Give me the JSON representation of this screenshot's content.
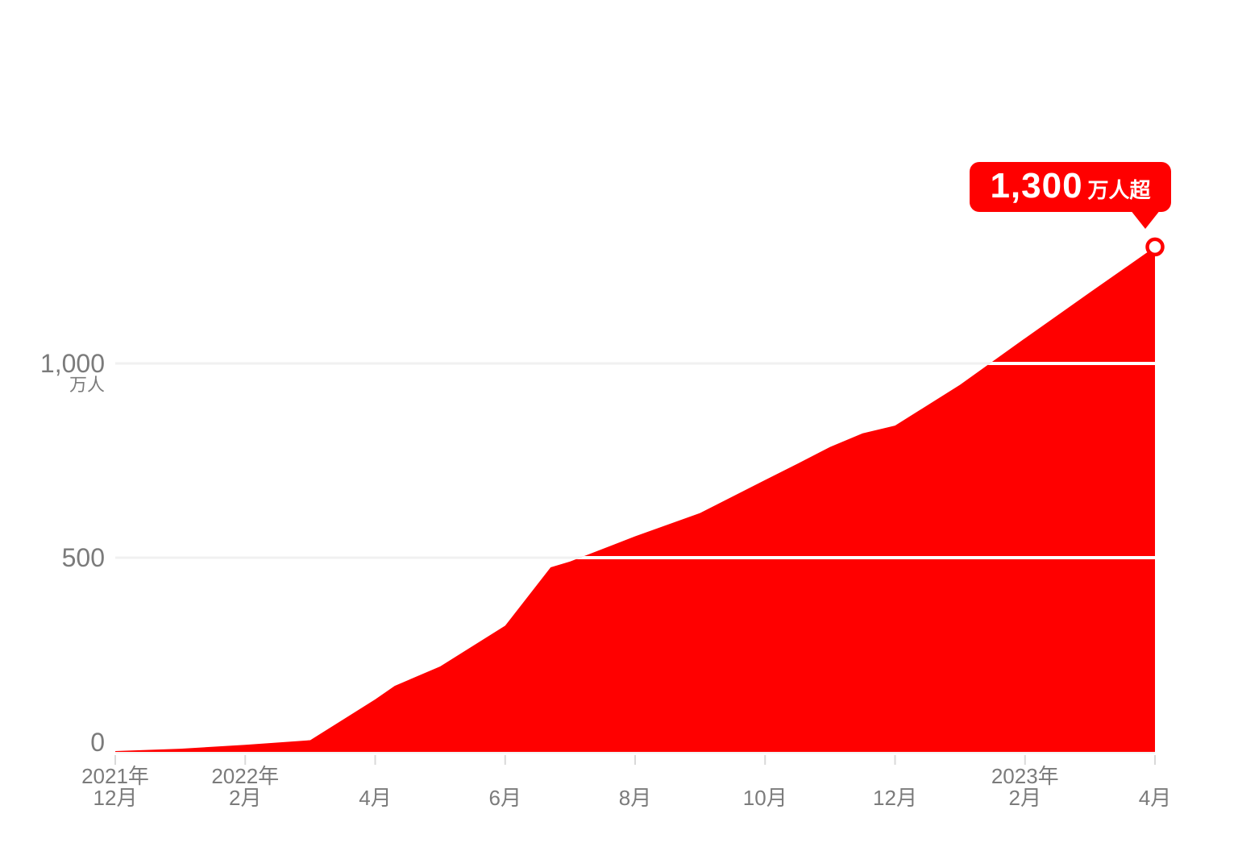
{
  "colors": {
    "accent_red": "#FF0000",
    "label_gray": "#7B7B7B",
    "grid_gray": "#F1F1F1",
    "tick_gray": "#D9D9D9",
    "grid_on_area": "#FFFFFF",
    "background": "#FFFFFF"
  },
  "chart_data": {
    "type": "area",
    "title": "",
    "unit": "万人",
    "x_start": "2021-12",
    "x_end": "2023-04",
    "x_months_span": 16,
    "ylim": [
      0,
      1300
    ],
    "grid": "horizontal",
    "legend": "none",
    "series": [
      {
        "name": "",
        "color": "#FF0000",
        "points": [
          {
            "m": 0,
            "date": "2021-12",
            "v": 2
          },
          {
            "m": 1,
            "date": "2022-01",
            "v": 8
          },
          {
            "m": 2,
            "date": "2022-02",
            "v": 18
          },
          {
            "m": 3,
            "date": "2022-03",
            "v": 30
          },
          {
            "m": 4,
            "date": "2022-04",
            "v": 135
          },
          {
            "m": 4.3,
            "v": 170
          },
          {
            "m": 5,
            "date": "2022-05",
            "v": 220
          },
          {
            "m": 6,
            "date": "2022-06",
            "v": 325
          },
          {
            "m": 6.7,
            "v": 475
          },
          {
            "m": 7,
            "date": "2022-07",
            "v": 490
          },
          {
            "m": 8,
            "date": "2022-08",
            "v": 555
          },
          {
            "m": 9,
            "date": "2022-09",
            "v": 615
          },
          {
            "m": 10,
            "date": "2022-10",
            "v": 700
          },
          {
            "m": 10.5,
            "v": 742
          },
          {
            "m": 11,
            "date": "2022-11",
            "v": 785
          },
          {
            "m": 11.5,
            "v": 820
          },
          {
            "m": 12,
            "date": "2022-12",
            "v": 840
          },
          {
            "m": 13,
            "date": "2023-01",
            "v": 945
          },
          {
            "m": 14,
            "date": "2023-02",
            "v": 1065
          },
          {
            "m": 15,
            "date": "2023-03",
            "v": 1183
          },
          {
            "m": 16,
            "date": "2023-04",
            "v": 1300
          }
        ]
      }
    ],
    "y_axis": {
      "ticks": [
        {
          "value": 1000,
          "label": "1,000",
          "sub": "万人"
        },
        {
          "value": 500,
          "label": "500"
        },
        {
          "value": 0,
          "label": "0"
        }
      ]
    },
    "x_axis": {
      "ticks": [
        {
          "m": 0,
          "line1": "2021年",
          "line2": "12月"
        },
        {
          "m": 2,
          "line1": "2022年",
          "line2": "2月"
        },
        {
          "m": 4,
          "line1": "",
          "line2": "4月"
        },
        {
          "m": 6,
          "line1": "",
          "line2": "6月"
        },
        {
          "m": 8,
          "line1": "",
          "line2": "8月"
        },
        {
          "m": 10,
          "line1": "",
          "line2": "10月"
        },
        {
          "m": 12,
          "line1": "",
          "line2": "12月"
        },
        {
          "m": 14,
          "line1": "2023年",
          "line2": "2月"
        },
        {
          "m": 16,
          "line1": "",
          "line2": "4月"
        }
      ]
    },
    "annotation": {
      "label": "1,300",
      "suffix": "万人超",
      "value": 1300,
      "at": "2023-04"
    }
  }
}
